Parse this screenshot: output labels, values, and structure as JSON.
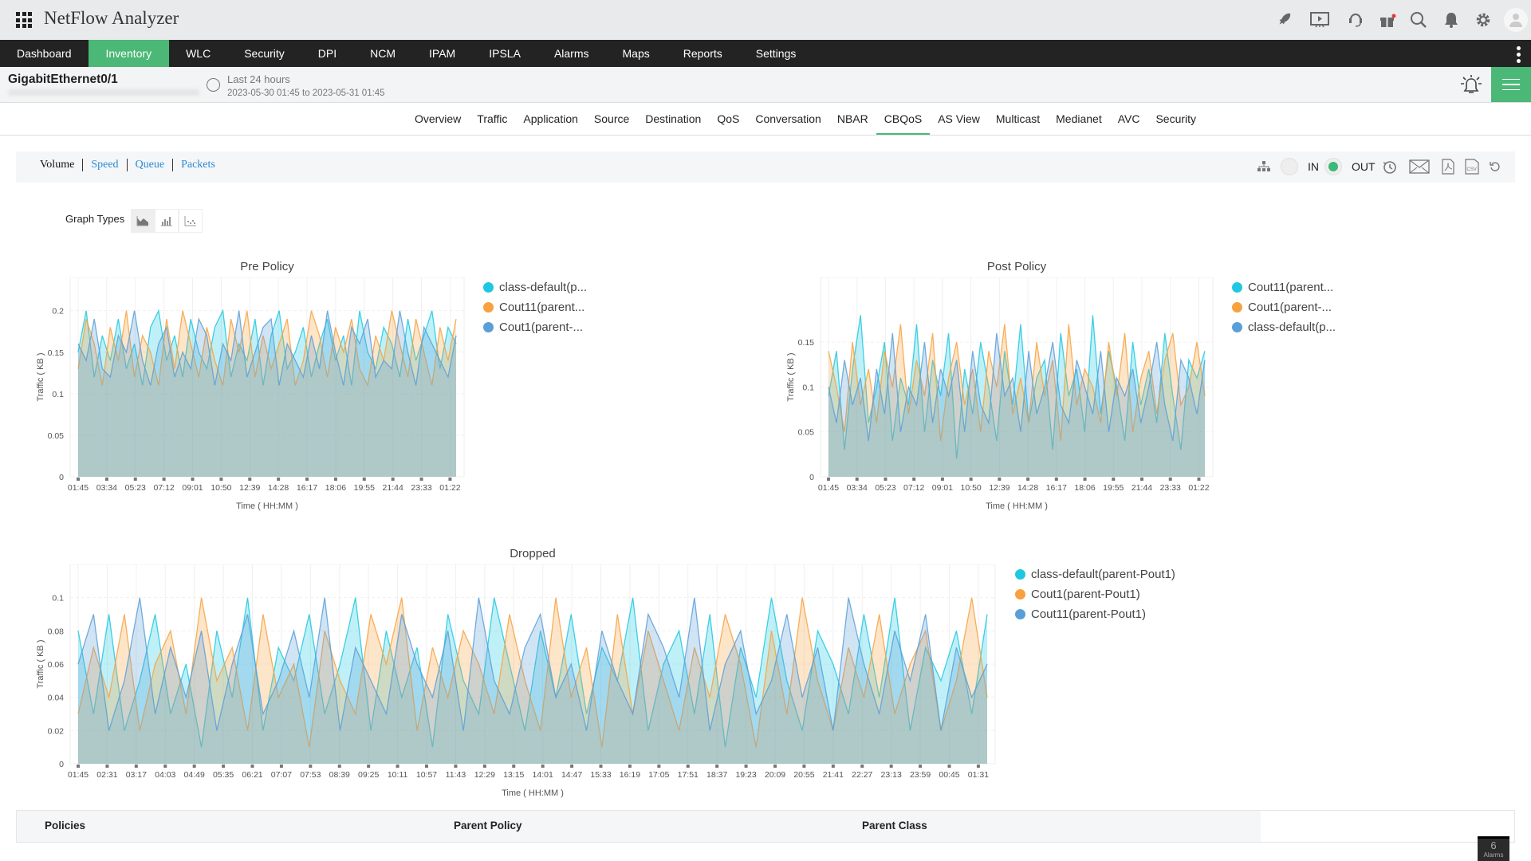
{
  "app": {
    "title": "NetFlow Analyzer",
    "alarm_count": "6",
    "alarm_label": "Alarms"
  },
  "header_icons": [
    "rocket-icon",
    "presentation-icon",
    "headset-icon",
    "gift-icon",
    "search-icon",
    "bell-icon",
    "gear-icon",
    "avatar-icon"
  ],
  "nav": {
    "items": [
      "Dashboard",
      "Inventory",
      "WLC",
      "Security",
      "DPI",
      "NCM",
      "IPAM",
      "IPSLA",
      "Alarms",
      "Maps",
      "Reports",
      "Settings"
    ],
    "active": "Inventory"
  },
  "interface": {
    "name": "GigabitEthernet0/1",
    "period": "Last 24 hours",
    "range": "2023-05-30 01:45 to 2023-05-31 01:45"
  },
  "tabs": {
    "items": [
      "Overview",
      "Traffic",
      "Application",
      "Source",
      "Destination",
      "QoS",
      "Conversation",
      "NBAR",
      "CBQoS",
      "AS View",
      "Multicast",
      "Medianet",
      "AVC",
      "Security"
    ],
    "active": "CBQoS"
  },
  "toolbar": {
    "metrics": [
      "Volume",
      "Speed",
      "Queue",
      "Packets"
    ],
    "active_metric": "Volume",
    "in_label": "IN",
    "out_label": "OUT",
    "direction": "OUT",
    "icons": [
      "hierarchy-icon",
      "history-icon",
      "mail-icon",
      "pdf-icon",
      "csv-icon",
      "refresh-icon"
    ]
  },
  "graph_types": {
    "label": "Graph Types",
    "options": [
      "area-chart-icon",
      "bar-chart-icon",
      "scatter-chart-icon"
    ],
    "active": "area-chart-icon"
  },
  "colors": {
    "accent": "#4cb877",
    "cyan": "#1ec8e1",
    "orange": "#f7a23e",
    "blue": "#5b9fd8"
  },
  "chart_data": [
    {
      "id": "pre",
      "type": "area",
      "title": "Pre Policy",
      "xlabel": "Time ( HH:MM )",
      "ylabel": "Traffic ( KB )",
      "ylim": [
        0,
        0.24
      ],
      "yticks": [
        0,
        0.05,
        0.1,
        0.15,
        0.2
      ],
      "grid": true,
      "legend": "right",
      "xticks": [
        "01:45",
        "03:34",
        "05:23",
        "07:12",
        "09:01",
        "10:50",
        "12:39",
        "14:28",
        "16:17",
        "18:06",
        "19:55",
        "21:44",
        "23:33",
        "01:22"
      ],
      "series": [
        {
          "name": "class-default(p...",
          "color": "#1ec8e1",
          "values": [
            0.15,
            0.2,
            0.12,
            0.17,
            0.14,
            0.19,
            0.13,
            0.16,
            0.11,
            0.18,
            0.2,
            0.14,
            0.17,
            0.12,
            0.19,
            0.15,
            0.13,
            0.18,
            0.2,
            0.12,
            0.16,
            0.14,
            0.19,
            0.11,
            0.17,
            0.2,
            0.13,
            0.15,
            0.18,
            0.12,
            0.16,
            0.19,
            0.14,
            0.17,
            0.11,
            0.2,
            0.15,
            0.13,
            0.18,
            0.16,
            0.12,
            0.19,
            0.14,
            0.17,
            0.2,
            0.13,
            0.18,
            0.16
          ]
        },
        {
          "name": "Cout11(parent...",
          "color": "#f7a23e",
          "values": [
            0.13,
            0.19,
            0.16,
            0.11,
            0.18,
            0.14,
            0.2,
            0.12,
            0.17,
            0.15,
            0.11,
            0.19,
            0.13,
            0.2,
            0.16,
            0.12,
            0.18,
            0.14,
            0.11,
            0.19,
            0.15,
            0.2,
            0.12,
            0.17,
            0.13,
            0.16,
            0.19,
            0.11,
            0.14,
            0.2,
            0.17,
            0.12,
            0.18,
            0.15,
            0.19,
            0.13,
            0.11,
            0.17,
            0.14,
            0.2,
            0.16,
            0.12,
            0.19,
            0.15,
            0.11,
            0.18,
            0.14,
            0.19
          ]
        },
        {
          "name": "Cout1(parent-...",
          "color": "#5b9fd8",
          "values": [
            0.16,
            0.14,
            0.19,
            0.13,
            0.12,
            0.17,
            0.15,
            0.2,
            0.14,
            0.11,
            0.16,
            0.18,
            0.12,
            0.15,
            0.13,
            0.19,
            0.17,
            0.11,
            0.16,
            0.14,
            0.2,
            0.12,
            0.15,
            0.18,
            0.19,
            0.11,
            0.16,
            0.14,
            0.12,
            0.17,
            0.13,
            0.2,
            0.15,
            0.11,
            0.18,
            0.16,
            0.19,
            0.12,
            0.14,
            0.13,
            0.2,
            0.15,
            0.11,
            0.18,
            0.16,
            0.14,
            0.12,
            0.17
          ]
        }
      ]
    },
    {
      "id": "post",
      "type": "area",
      "title": "Post Policy",
      "xlabel": "Time ( HH:MM )",
      "ylabel": "Traffic ( KB )",
      "ylim": [
        0,
        0.222
      ],
      "yticks": [
        0,
        0.05,
        0.1,
        0.15
      ],
      "grid": true,
      "legend": "right",
      "xticks": [
        "01:45",
        "03:34",
        "05:23",
        "07:12",
        "09:01",
        "10:50",
        "12:39",
        "14:28",
        "16:17",
        "18:06",
        "19:55",
        "21:44",
        "23:33",
        "01:22"
      ],
      "series": [
        {
          "name": "Cout11(parent...",
          "color": "#1ec8e1",
          "values": [
            0.09,
            0.14,
            0.03,
            0.12,
            0.18,
            0.06,
            0.1,
            0.15,
            0.04,
            0.11,
            0.08,
            0.17,
            0.05,
            0.13,
            0.09,
            0.16,
            0.02,
            0.12,
            0.07,
            0.15,
            0.1,
            0.04,
            0.14,
            0.08,
            0.17,
            0.06,
            0.11,
            0.13,
            0.03,
            0.16,
            0.09,
            0.12,
            0.05,
            0.18,
            0.07,
            0.14,
            0.1,
            0.04,
            0.15,
            0.08,
            0.12,
            0.06,
            0.16,
            0.09,
            0.03,
            0.13,
            0.11,
            0.14
          ]
        },
        {
          "name": "Cout1(parent-...",
          "color": "#f7a23e",
          "values": [
            0.14,
            0.1,
            0.05,
            0.15,
            0.08,
            0.12,
            0.06,
            0.14,
            0.1,
            0.17,
            0.07,
            0.13,
            0.09,
            0.16,
            0.04,
            0.11,
            0.15,
            0.08,
            0.12,
            0.05,
            0.14,
            0.1,
            0.17,
            0.07,
            0.11,
            0.06,
            0.15,
            0.09,
            0.13,
            0.04,
            0.17,
            0.08,
            0.12,
            0.1,
            0.06,
            0.15,
            0.09,
            0.16,
            0.05,
            0.11,
            0.14,
            0.07,
            0.13,
            0.16,
            0.08,
            0.1,
            0.15,
            0.09
          ]
        },
        {
          "name": "class-default(p...",
          "color": "#5b9fd8",
          "values": [
            0.1,
            0.06,
            0.13,
            0.08,
            0.11,
            0.04,
            0.12,
            0.07,
            0.16,
            0.05,
            0.1,
            0.08,
            0.15,
            0.06,
            0.12,
            0.09,
            0.13,
            0.05,
            0.14,
            0.08,
            0.06,
            0.16,
            0.09,
            0.11,
            0.05,
            0.14,
            0.07,
            0.1,
            0.15,
            0.08,
            0.06,
            0.13,
            0.1,
            0.07,
            0.14,
            0.05,
            0.11,
            0.09,
            0.12,
            0.06,
            0.1,
            0.15,
            0.08,
            0.04,
            0.13,
            0.11,
            0.07,
            0.13
          ]
        }
      ]
    },
    {
      "id": "dropped",
      "type": "area",
      "title": "Dropped",
      "xlabel": "Time ( HH:MM )",
      "ylabel": "Traffic ( KB )",
      "ylim": [
        0,
        0.12
      ],
      "yticks": [
        0,
        0.02,
        0.04,
        0.06,
        0.08,
        0.1
      ],
      "grid": true,
      "legend": "right",
      "xticks": [
        "01:45",
        "02:31",
        "03:17",
        "04:03",
        "04:49",
        "05:35",
        "06:21",
        "07:07",
        "07:53",
        "08:39",
        "09:25",
        "10:11",
        "10:57",
        "11:43",
        "12:29",
        "13:15",
        "14:01",
        "14:47",
        "15:33",
        "16:19",
        "17:05",
        "17:51",
        "18:37",
        "19:23",
        "20:09",
        "20:55",
        "21:41",
        "22:27",
        "23:13",
        "23:59",
        "00:45",
        "01:31"
      ],
      "series": [
        {
          "name": "class-default(parent-Pout1)",
          "color": "#1ec8e1",
          "values": [
            0.08,
            0.03,
            0.09,
            0.02,
            0.05,
            0.09,
            0.03,
            0.06,
            0.01,
            0.08,
            0.04,
            0.1,
            0.02,
            0.07,
            0.05,
            0.09,
            0.03,
            0.06,
            0.1,
            0.02,
            0.08,
            0.04,
            0.07,
            0.01,
            0.09,
            0.05,
            0.03,
            0.1,
            0.06,
            0.02,
            0.08,
            0.04,
            0.09,
            0.03,
            0.07,
            0.05,
            0.1,
            0.02,
            0.06,
            0.08,
            0.03,
            0.09,
            0.01,
            0.07,
            0.04,
            0.1,
            0.05,
            0.02,
            0.08,
            0.06,
            0.03,
            0.09,
            0.04,
            0.1,
            0.02,
            0.07,
            0.05,
            0.08,
            0.03,
            0.09
          ]
        },
        {
          "name": "Cout1(parent-Pout1)",
          "color": "#f7a23e",
          "values": [
            0.03,
            0.07,
            0.04,
            0.09,
            0.02,
            0.06,
            0.08,
            0.03,
            0.1,
            0.05,
            0.07,
            0.02,
            0.09,
            0.04,
            0.06,
            0.01,
            0.08,
            0.05,
            0.03,
            0.09,
            0.06,
            0.1,
            0.02,
            0.07,
            0.04,
            0.08,
            0.06,
            0.03,
            0.09,
            0.05,
            0.02,
            0.1,
            0.04,
            0.07,
            0.01,
            0.09,
            0.03,
            0.08,
            0.05,
            0.02,
            0.07,
            0.04,
            0.09,
            0.06,
            0.01,
            0.08,
            0.03,
            0.1,
            0.05,
            0.02,
            0.07,
            0.04,
            0.09,
            0.03,
            0.06,
            0.08,
            0.02,
            0.05,
            0.1,
            0.04
          ]
        },
        {
          "name": "Cout11(parent-Pout1)",
          "color": "#5b9fd8",
          "values": [
            0.06,
            0.09,
            0.02,
            0.05,
            0.1,
            0.03,
            0.07,
            0.04,
            0.08,
            0.02,
            0.06,
            0.09,
            0.03,
            0.05,
            0.08,
            0.04,
            0.1,
            0.02,
            0.07,
            0.05,
            0.03,
            0.09,
            0.06,
            0.04,
            0.08,
            0.02,
            0.1,
            0.05,
            0.03,
            0.07,
            0.09,
            0.04,
            0.06,
            0.02,
            0.08,
            0.05,
            0.03,
            0.09,
            0.07,
            0.04,
            0.1,
            0.02,
            0.06,
            0.08,
            0.03,
            0.05,
            0.09,
            0.04,
            0.07,
            0.02,
            0.1,
            0.06,
            0.03,
            0.08,
            0.05,
            0.09,
            0.02,
            0.07,
            0.04,
            0.06
          ]
        }
      ]
    }
  ],
  "table": {
    "columns": [
      "Policies",
      "Parent Policy",
      "Parent Class"
    ]
  }
}
